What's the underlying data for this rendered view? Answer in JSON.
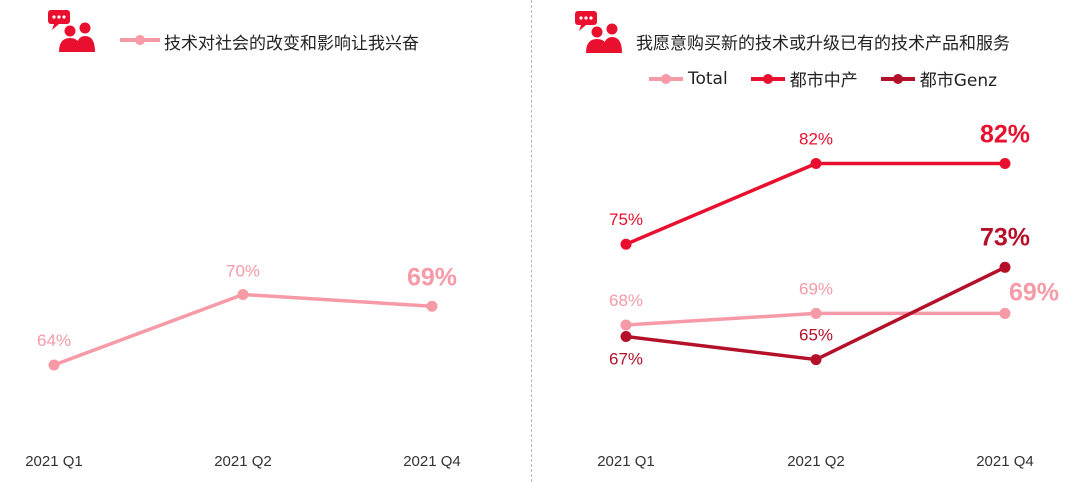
{
  "colors": {
    "total": "#f59aa6",
    "mid": "#e8102e",
    "genz": "#b5102a",
    "icon": "#e8102e",
    "tick": "#333333"
  },
  "chart_data": [
    {
      "type": "line",
      "title": "技术对社会的改变和影响让我兴奋",
      "categories": [
        "2021 Q1",
        "2021 Q2",
        "2021 Q4"
      ],
      "ylim": [
        50,
        85
      ],
      "grid": false,
      "series": [
        {
          "values": [
            64,
            70,
            69
          ],
          "labels": [
            "64%",
            "70%",
            "69%"
          ],
          "color": "#f59aa6"
        }
      ]
    },
    {
      "type": "line",
      "title": "我愿意购买新的技术或升级已有的技术产品和服务",
      "categories": [
        "2021 Q1",
        "2021 Q2",
        "2021 Q4"
      ],
      "ylim": [
        55,
        95
      ],
      "grid": false,
      "legend": "top",
      "series": [
        {
          "name": "Total",
          "values": [
            68,
            69,
            69
          ],
          "labels": [
            "68%",
            "69%",
            "69%"
          ],
          "color": "#f59aa6"
        },
        {
          "name": "都市中产",
          "values": [
            75,
            82,
            82
          ],
          "labels": [
            "75%",
            "82%",
            "82%"
          ],
          "color": "#e8102e"
        },
        {
          "name": "都市Genz",
          "values": [
            67,
            65,
            73
          ],
          "labels": [
            "67%",
            "65%",
            "73%"
          ],
          "color": "#b5102a"
        }
      ]
    }
  ]
}
